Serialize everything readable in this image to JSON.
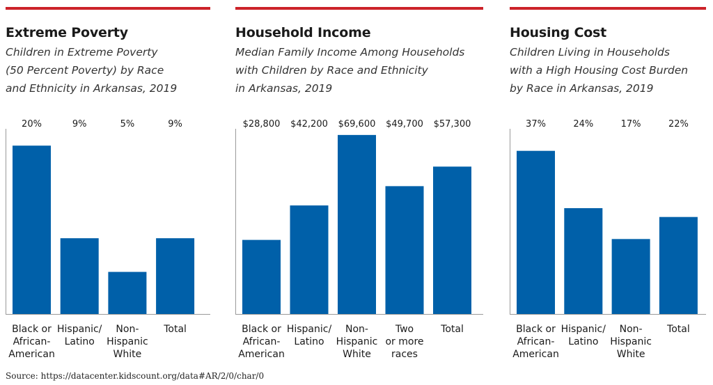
{
  "bar_color": "#0060a9",
  "accent_color": "#cc2229",
  "source": "Source: https://datacenter.kidscount.org/data#AR/2/0/char/0",
  "chart_data": [
    {
      "type": "bar",
      "title": "Extreme Poverty",
      "subtitle": [
        "Children in Extreme Poverty",
        "(50 Percent Poverty) by Race",
        "and Ethnicity in Arkansas, 2019"
      ],
      "categories": [
        [
          "Black or",
          "African-",
          "American"
        ],
        [
          "Hispanic/",
          "Latino"
        ],
        [
          "Non-",
          "Hispanic",
          "White"
        ],
        [
          "Total"
        ]
      ],
      "values": [
        20,
        9,
        5,
        9
      ],
      "value_labels": [
        "20%",
        "9%",
        "5%",
        "9%"
      ],
      "ylim": [
        0,
        22
      ]
    },
    {
      "type": "bar",
      "title": "Household Income",
      "subtitle": [
        "Median Family Income Among Households",
        "with Children by Race and Ethnicity",
        "in Arkansas, 2019"
      ],
      "categories": [
        [
          "Black or",
          "African-",
          "American"
        ],
        [
          "Hispanic/",
          "Latino"
        ],
        [
          "Non-",
          "Hispanic",
          "White"
        ],
        [
          "Two",
          "or more",
          "races"
        ],
        [
          "Total"
        ]
      ],
      "values": [
        28800,
        42200,
        69600,
        49700,
        57300
      ],
      "value_labels": [
        "$28,800",
        "$42,200",
        "$69,600",
        "$49,700",
        "$57,300"
      ],
      "ylim": [
        0,
        72000
      ]
    },
    {
      "type": "bar",
      "title": "Housing Cost",
      "subtitle": [
        "Children Living in Households",
        "with a High Housing Cost Burden",
        "by Race in Arkansas, 2019"
      ],
      "categories": [
        [
          "Black or",
          "African-",
          "American"
        ],
        [
          "Hispanic/",
          "Latino"
        ],
        [
          "Non-",
          "Hispanic",
          "White"
        ],
        [
          "Total"
        ]
      ],
      "values": [
        37,
        24,
        17,
        22
      ],
      "value_labels": [
        "37%",
        "24%",
        "17%",
        "22%"
      ],
      "ylim": [
        0,
        42
      ]
    }
  ]
}
